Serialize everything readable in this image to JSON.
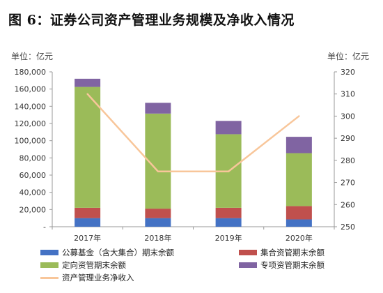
{
  "title": "图 6：证券公司资产管理业务规模及净收入情况",
  "unit_left": "单位：亿元",
  "unit_right": "单位：亿元",
  "colors": {
    "public_fund": "#4472C4",
    "collective": "#C0504D",
    "directed": "#9BBB59",
    "special": "#8064A2",
    "net_income": "#F8C69A",
    "axis": "#999999"
  },
  "legend": [
    {
      "label": "公募基金（含大集合）期末余额",
      "color_key": "public_fund",
      "kind": "box"
    },
    {
      "label": "集合资管期末余额",
      "color_key": "collective",
      "kind": "box"
    },
    {
      "label": "定向资管期末余额",
      "color_key": "directed",
      "kind": "box"
    },
    {
      "label": "专项资管期末余额",
      "color_key": "special",
      "kind": "box"
    },
    {
      "label": "资产管理业务净收入",
      "color_key": "net_income",
      "kind": "line"
    }
  ],
  "chart_data": {
    "type": "bar",
    "stacked": true,
    "categories": [
      "2017年",
      "2018年",
      "2019年",
      "2020年"
    ],
    "series": [
      {
        "name": "公募基金（含大集合）期末余额",
        "color_key": "public_fund",
        "values": [
          10000,
          10000,
          10000,
          8500
        ]
      },
      {
        "name": "集合资管期末余额",
        "color_key": "collective",
        "values": [
          12000,
          11000,
          12000,
          15500
        ]
      },
      {
        "name": "定向资管期末余额",
        "color_key": "directed",
        "values": [
          140500,
          110500,
          85500,
          61500
        ]
      },
      {
        "name": "专项资管期末余额",
        "color_key": "special",
        "values": [
          9500,
          12500,
          15500,
          19000
        ]
      }
    ],
    "line": {
      "name": "资产管理业务净收入",
      "color_key": "net_income",
      "axis": "right",
      "values": [
        310,
        275,
        275,
        300
      ]
    },
    "y_left": {
      "min": 0,
      "max": 180000,
      "ticks": [
        "-",
        "20,000",
        "40,000",
        "60,000",
        "80,000",
        "100,000",
        "120,000",
        "140,000",
        "160,000",
        "180,000"
      ]
    },
    "y_right": {
      "min": 250,
      "max": 320,
      "ticks": [
        "250",
        "260",
        "270",
        "280",
        "290",
        "300",
        "310",
        "320"
      ]
    },
    "grid": false,
    "legend_position": "bottom"
  }
}
